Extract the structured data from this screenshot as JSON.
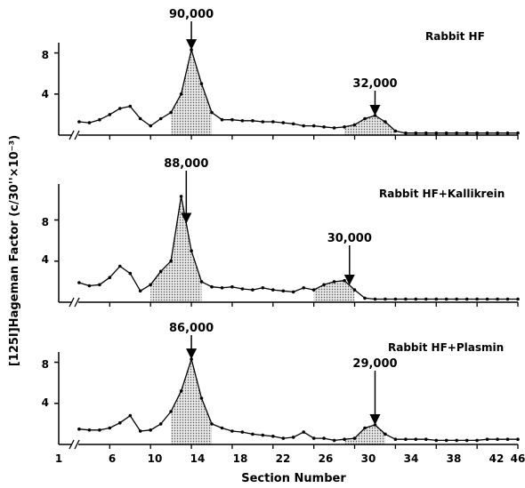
{
  "chart_data": {
    "type": "line",
    "xlabel": "Section Number",
    "ylabel": "[125I]Hageman Factor (c/30''×10⁻³)",
    "xlim": [
      1,
      46
    ],
    "x_ticks": [
      "1",
      "6",
      "10",
      "14",
      "18",
      "22",
      "26",
      "30",
      "34",
      "38",
      "42",
      "46"
    ],
    "x_tick_values": [
      1,
      6,
      10,
      14,
      18,
      22,
      26,
      30,
      34,
      38,
      42,
      46
    ],
    "x_axis_break": true,
    "color": "#000000",
    "shade_color": "#bdbdbd",
    "panels": [
      {
        "title": "Rabbit HF",
        "ylim": [
          0,
          9
        ],
        "y_ticks": [
          "4",
          "8"
        ],
        "y_tick_values": [
          4,
          8
        ],
        "series": [
          {
            "x": [
              3,
              4,
              5,
              6,
              7,
              8,
              9,
              10,
              11,
              12,
              13,
              14,
              15,
              16,
              17,
              18,
              19,
              20,
              21,
              22,
              23,
              24,
              25,
              26,
              27,
              28,
              29,
              30,
              31,
              32,
              33,
              34,
              35,
              36,
              37,
              38,
              39,
              40,
              41,
              42,
              43,
              44,
              45,
              46
            ],
            "y": [
              1.3,
              1.2,
              1.5,
              2.0,
              2.6,
              2.8,
              1.6,
              0.9,
              1.6,
              2.2,
              4.0,
              8.3,
              5.0,
              2.2,
              1.5,
              1.5,
              1.4,
              1.4,
              1.3,
              1.3,
              1.2,
              1.1,
              0.9,
              0.9,
              0.8,
              0.7,
              0.8,
              1.0,
              1.6,
              1.9,
              1.3,
              0.4,
              0.2,
              0.2,
              0.2,
              0.2,
              0.2,
              0.2,
              0.2,
              0.2,
              0.2,
              0.2,
              0.2,
              0.2
            ]
          }
        ],
        "shaded_regions": [
          [
            12,
            16
          ],
          [
            29,
            34
          ]
        ],
        "annotations": [
          {
            "label": "90,000",
            "x": 14
          },
          {
            "label": "32,000",
            "x": 32
          }
        ]
      },
      {
        "title": "Rabbit HF+Kallikrein",
        "ylim": [
          0,
          11.5
        ],
        "y_ticks": [
          "4",
          "8"
        ],
        "y_tick_values": [
          4,
          8
        ],
        "series": [
          {
            "x": [
              3,
              4,
              5,
              6,
              7,
              8,
              9,
              10,
              11,
              12,
              13,
              14,
              15,
              16,
              17,
              18,
              19,
              20,
              21,
              22,
              23,
              24,
              25,
              26,
              27,
              28,
              29,
              30,
              31,
              32,
              33,
              34,
              35,
              36,
              37,
              38,
              39,
              40,
              41,
              42,
              43,
              44,
              45,
              46
            ],
            "y": [
              1.9,
              1.6,
              1.7,
              2.4,
              3.5,
              2.8,
              1.1,
              1.7,
              3.0,
              4.0,
              10.3,
              5.0,
              2.0,
              1.5,
              1.4,
              1.5,
              1.3,
              1.2,
              1.4,
              1.2,
              1.1,
              1.0,
              1.4,
              1.2,
              1.7,
              2.0,
              2.1,
              1.2,
              0.4,
              0.3,
              0.3,
              0.3,
              0.3,
              0.3,
              0.3,
              0.3,
              0.3,
              0.3,
              0.3,
              0.3,
              0.3,
              0.3,
              0.3,
              0.3
            ]
          }
        ],
        "shaded_regions": [
          [
            10,
            15
          ],
          [
            26,
            30
          ]
        ],
        "annotations": [
          {
            "label": "88,000",
            "x": 13.5
          },
          {
            "label": "30,000",
            "x": 29.5
          }
        ]
      },
      {
        "title": "Rabbit HF+Plasmin",
        "ylim": [
          0,
          9
        ],
        "y_ticks": [
          "4",
          "8"
        ],
        "y_tick_values": [
          4,
          8
        ],
        "series": [
          {
            "x": [
              3,
              4,
              5,
              6,
              7,
              8,
              9,
              10,
              11,
              12,
              13,
              14,
              15,
              16,
              17,
              18,
              19,
              20,
              21,
              22,
              23,
              24,
              25,
              26,
              27,
              28,
              29,
              30,
              31,
              32,
              33,
              34,
              35,
              36,
              37,
              38,
              39,
              40,
              41,
              42,
              43,
              44,
              45,
              46
            ],
            "y": [
              1.5,
              1.4,
              1.4,
              1.6,
              2.1,
              2.8,
              1.3,
              1.4,
              2.0,
              3.2,
              5.2,
              8.3,
              4.5,
              2.0,
              1.6,
              1.3,
              1.2,
              1.0,
              0.9,
              0.8,
              0.6,
              0.7,
              1.2,
              0.6,
              0.6,
              0.4,
              0.5,
              0.6,
              1.6,
              1.9,
              1.0,
              0.5,
              0.5,
              0.5,
              0.5,
              0.4,
              0.4,
              0.4,
              0.4,
              0.4,
              0.5,
              0.5,
              0.5,
              0.5
            ]
          }
        ],
        "shaded_regions": [
          [
            12,
            16
          ],
          [
            29,
            33
          ]
        ],
        "annotations": [
          {
            "label": "86,000",
            "x": 14
          },
          {
            "label": "29,000",
            "x": 32
          }
        ]
      }
    ]
  }
}
